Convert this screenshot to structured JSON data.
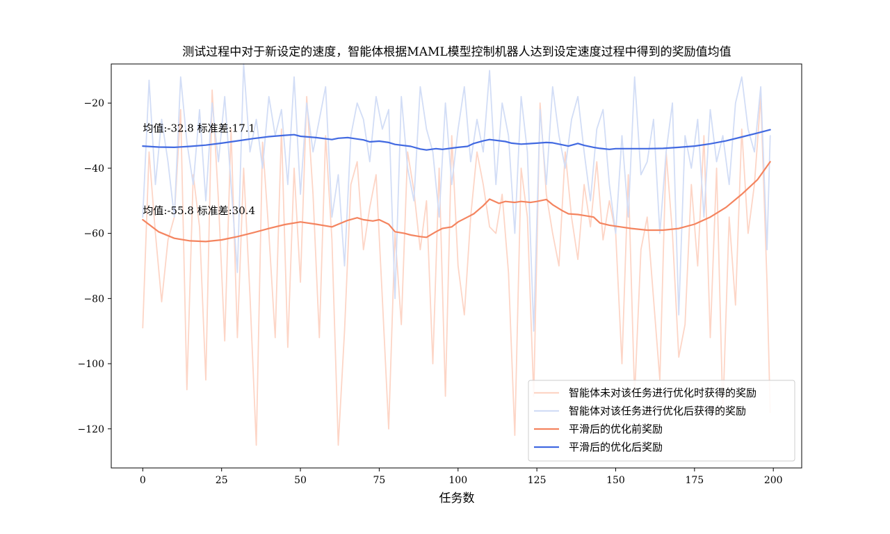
{
  "chart_data": {
    "type": "line",
    "title": "测试过程中对于新设定的速度，智能体根据MAML模型控制机器人达到设定速度过程中得到的奖励值均值",
    "xlabel": "任务数",
    "ylabel": "",
    "xlim": [
      -10,
      209
    ],
    "ylim": [
      -132,
      -8
    ],
    "xticks": [
      0,
      25,
      50,
      75,
      100,
      125,
      150,
      175,
      200
    ],
    "yticks": [
      -120,
      -100,
      -80,
      -60,
      -40,
      -20
    ],
    "grid": false,
    "legend_position": "lower-right",
    "annotations": [
      {
        "text": "均值:-32.8 标准差:17.1",
        "x": 0,
        "y": -30.5
      },
      {
        "text": "均值:-55.8 标准差:30.4",
        "x": 0,
        "y": -55.8
      }
    ],
    "series": [
      {
        "name": "智能体未对该任务进行优化时获得的奖励",
        "color": "#fdd5c6",
        "style": "raw",
        "x": [
          0,
          2,
          4,
          6,
          8,
          10,
          12,
          14,
          16,
          18,
          20,
          22,
          24,
          26,
          28,
          30,
          32,
          34,
          36,
          38,
          40,
          42,
          44,
          46,
          48,
          50,
          52,
          54,
          56,
          58,
          60,
          62,
          64,
          66,
          68,
          70,
          72,
          74,
          76,
          78,
          80,
          82,
          84,
          86,
          88,
          90,
          92,
          94,
          96,
          98,
          100,
          102,
          104,
          106,
          108,
          110,
          112,
          114,
          116,
          118,
          120,
          122,
          124,
          126,
          128,
          130,
          132,
          134,
          136,
          138,
          140,
          142,
          144,
          146,
          148,
          150,
          152,
          154,
          156,
          158,
          160,
          162,
          164,
          166,
          168,
          170,
          172,
          174,
          176,
          178,
          180,
          182,
          184,
          186,
          188,
          190,
          192,
          194,
          196,
          198,
          199
        ],
        "values": [
          -89,
          -35,
          -60,
          -81,
          -62,
          -55,
          -22,
          -108,
          -42,
          -58,
          -105,
          -16,
          -50,
          -93,
          -28,
          -92,
          -40,
          -79,
          -125,
          -32,
          -60,
          -92,
          -28,
          -95,
          -40,
          -75,
          -18,
          -48,
          -92,
          -30,
          -62,
          -125,
          -90,
          -45,
          -38,
          -65,
          -52,
          -42,
          -80,
          -120,
          -60,
          -88,
          -35,
          -47,
          -65,
          -50,
          -100,
          -40,
          -110,
          -30,
          -70,
          -85,
          -55,
          -35,
          -45,
          -58,
          -60,
          -48,
          -72,
          -122,
          -40,
          -55,
          -110,
          -20,
          -48,
          -60,
          -70,
          -35,
          -55,
          -68,
          -45,
          -58,
          -38,
          -62,
          -50,
          -60,
          -100,
          -42,
          -110,
          -65,
          -55,
          -80,
          -105,
          -35,
          -60,
          -98,
          -88,
          -45,
          -70,
          -30,
          -92,
          -40,
          -115,
          -55,
          -82,
          -28,
          -60,
          -45,
          -18,
          -75,
          -115
        ],
        "smoothed": false
      },
      {
        "name": "智能体对该任务进行优化后获得的奖励",
        "color": "#d2ddf6",
        "style": "raw",
        "x": [
          0,
          2,
          4,
          6,
          8,
          10,
          12,
          14,
          16,
          18,
          20,
          22,
          24,
          26,
          28,
          30,
          32,
          34,
          36,
          38,
          40,
          42,
          44,
          46,
          48,
          50,
          52,
          54,
          56,
          58,
          60,
          62,
          64,
          66,
          68,
          70,
          72,
          74,
          76,
          78,
          80,
          82,
          84,
          86,
          88,
          90,
          92,
          94,
          96,
          98,
          100,
          102,
          104,
          106,
          108,
          110,
          112,
          114,
          116,
          118,
          120,
          122,
          124,
          126,
          128,
          130,
          132,
          134,
          136,
          138,
          140,
          142,
          144,
          146,
          148,
          150,
          152,
          154,
          156,
          158,
          160,
          162,
          164,
          166,
          168,
          170,
          172,
          174,
          176,
          178,
          180,
          182,
          184,
          186,
          188,
          190,
          192,
          194,
          196,
          198,
          199
        ],
        "values": [
          -55,
          -13,
          -45,
          -25,
          -38,
          -55,
          -12,
          -32,
          -45,
          -22,
          -50,
          -20,
          -38,
          -18,
          -45,
          -72,
          -8,
          -35,
          -25,
          -40,
          -18,
          -30,
          -22,
          -45,
          -12,
          -48,
          -20,
          -35,
          -25,
          -15,
          -55,
          -42,
          -70,
          -30,
          -20,
          -25,
          -38,
          -18,
          -28,
          -22,
          -80,
          -18,
          -40,
          -50,
          -15,
          -28,
          -35,
          -55,
          -20,
          -45,
          -28,
          -15,
          -38,
          -25,
          -35,
          -10,
          -45,
          -20,
          -30,
          -60,
          -18,
          -35,
          -90,
          -22,
          -45,
          -15,
          -30,
          -40,
          -25,
          -18,
          -35,
          -50,
          -28,
          -22,
          -45,
          -60,
          -30,
          -55,
          -12,
          -42,
          -38,
          -25,
          -60,
          -35,
          -20,
          -85,
          -30,
          -40,
          -25,
          -55,
          -22,
          -38,
          -30,
          -45,
          -20,
          -12,
          -28,
          -35,
          -15,
          -65,
          -30
        ],
        "smoothed": false
      },
      {
        "name": "平滑后的优化前奖励",
        "color": "#f4845f",
        "style": "smooth",
        "x": [
          0,
          5,
          10,
          15,
          20,
          25,
          30,
          35,
          40,
          45,
          50,
          55,
          60,
          62,
          65,
          68,
          70,
          73,
          75,
          78,
          80,
          83,
          85,
          88,
          90,
          93,
          95,
          98,
          100,
          103,
          105,
          108,
          110,
          113,
          115,
          118,
          120,
          123,
          125,
          128,
          130,
          133,
          135,
          138,
          140,
          143,
          145,
          148,
          150,
          155,
          160,
          165,
          170,
          175,
          180,
          185,
          190,
          195,
          199
        ],
        "values": [
          -55.8,
          -59.5,
          -61.5,
          -62.3,
          -62.5,
          -62.0,
          -61.0,
          -59.8,
          -58.5,
          -57.3,
          -56.5,
          -57.2,
          -58.0,
          -57.2,
          -56.0,
          -55.2,
          -55.8,
          -56.2,
          -55.8,
          -57.2,
          -59.5,
          -60.0,
          -60.5,
          -61.0,
          -61.2,
          -59.5,
          -58.5,
          -58.0,
          -56.5,
          -55.0,
          -54.0,
          -51.5,
          -49.5,
          -50.8,
          -50.2,
          -50.5,
          -50.2,
          -50.5,
          -50.2,
          -49.6,
          -51.2,
          -53.0,
          -54.0,
          -54.2,
          -54.5,
          -55.0,
          -56.8,
          -57.5,
          -57.8,
          -58.5,
          -59.0,
          -59.0,
          -58.5,
          -57.2,
          -55.0,
          -52.0,
          -48.0,
          -43.5,
          -38.0
        ],
        "smoothed": true
      },
      {
        "name": "平滑后的优化后奖励",
        "color": "#4169e1",
        "style": "smooth",
        "x": [
          0,
          5,
          10,
          15,
          20,
          25,
          30,
          35,
          40,
          45,
          48,
          50,
          55,
          60,
          62,
          65,
          70,
          72,
          75,
          78,
          80,
          85,
          88,
          90,
          93,
          95,
          100,
          103,
          105,
          108,
          110,
          115,
          117,
          120,
          125,
          128,
          130,
          135,
          138,
          140,
          143,
          145,
          148,
          150,
          155,
          160,
          165,
          170,
          175,
          180,
          185,
          190,
          195,
          199
        ],
        "values": [
          -33.2,
          -33.5,
          -33.6,
          -33.3,
          -32.9,
          -32.3,
          -31.6,
          -30.9,
          -30.3,
          -29.9,
          -29.7,
          -30.2,
          -30.6,
          -31.2,
          -30.8,
          -30.6,
          -31.3,
          -31.9,
          -31.7,
          -32.1,
          -32.7,
          -33.3,
          -34.1,
          -34.4,
          -34.0,
          -34.2,
          -33.6,
          -33.3,
          -32.4,
          -31.6,
          -31.2,
          -31.8,
          -32.3,
          -32.6,
          -32.3,
          -32.1,
          -32.2,
          -33.2,
          -32.4,
          -33.0,
          -33.6,
          -33.9,
          -34.2,
          -34.0,
          -34.0,
          -34.0,
          -33.9,
          -33.6,
          -33.2,
          -32.5,
          -31.6,
          -30.4,
          -29.2,
          -28.2
        ],
        "smoothed": true
      }
    ]
  }
}
